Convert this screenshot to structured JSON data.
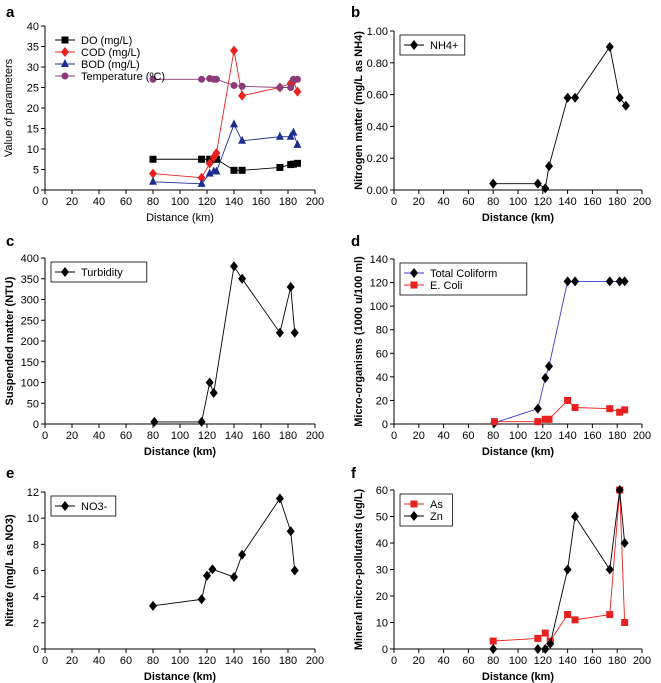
{
  "chart_data": [
    {
      "panel": "a",
      "type": "line",
      "xlabel": "Distance (km)",
      "ylabel": "Value of parameters",
      "xlim": [
        0,
        200
      ],
      "ylim": [
        0,
        40
      ],
      "xticks": [
        0,
        20,
        40,
        60,
        80,
        100,
        120,
        140,
        160,
        180,
        200
      ],
      "yticks": [
        0,
        5,
        10,
        15,
        20,
        25,
        30,
        35,
        40
      ],
      "xtick_labels": [
        "0",
        "20",
        "40",
        "60",
        "80",
        "100",
        "120",
        "140",
        "160",
        "180",
        "200"
      ],
      "ytick_labels": [
        "0",
        "5",
        "10",
        "15",
        "20",
        "25",
        "30",
        "35",
        "40"
      ],
      "legend_position": "top-left",
      "legend_boxed": false,
      "bold_labels": false,
      "series": [
        {
          "name": "DO  (mg/L)",
          "color": "#000000",
          "marker": "square",
          "x": [
            80,
            116,
            122,
            125,
            127,
            140,
            146,
            174,
            182,
            184,
            187
          ],
          "y": [
            7.5,
            7.5,
            7.5,
            7.5,
            7.5,
            4.8,
            4.8,
            5.5,
            6.2,
            6.3,
            6.5
          ]
        },
        {
          "name": "COD  (mg/L)",
          "color": "#e8211f",
          "marker": "diamond",
          "x": [
            80,
            116,
            122,
            125,
            127,
            140,
            146,
            174,
            182,
            184,
            187
          ],
          "y": [
            4,
            3,
            6.5,
            8,
            9,
            34,
            23,
            25,
            26,
            26.5,
            24
          ]
        },
        {
          "name": "BOD  (mg/L)",
          "color": "#1c2e8f",
          "marker": "triangle",
          "x": [
            80,
            116,
            122,
            125,
            127,
            140,
            146,
            174,
            182,
            184,
            187
          ],
          "y": [
            2,
            1.5,
            4,
            4.5,
            4.5,
            16,
            12,
            13,
            13,
            14,
            11
          ]
        },
        {
          "name": "Temperature (ºC)",
          "color": "#8c3a7a",
          "marker": "circle",
          "x": [
            80,
            116,
            122,
            125,
            127,
            140,
            146,
            174,
            182,
            184,
            187
          ],
          "y": [
            27,
            27,
            27.2,
            27,
            27,
            25.5,
            25.3,
            25,
            25,
            27,
            27
          ]
        }
      ]
    },
    {
      "panel": "b",
      "type": "line",
      "xlabel": "Distance (km)",
      "ylabel": "Nitrogen matter (mg/L as NH4)",
      "xlim": [
        0,
        200
      ],
      "ylim": [
        0,
        1
      ],
      "xticks": [
        0,
        20,
        40,
        60,
        80,
        100,
        120,
        140,
        160,
        180,
        200
      ],
      "yticks": [
        0,
        0.2,
        0.4,
        0.6,
        0.8,
        1.0
      ],
      "xtick_labels": [
        "0",
        "20",
        "40",
        "60",
        "80",
        "100",
        "120",
        "140",
        "160",
        "180",
        "200"
      ],
      "ytick_labels": [
        "0.00",
        "0.20",
        "0.40",
        "0.60",
        "0.80",
        "1.00"
      ],
      "legend_position": "top-left",
      "legend_boxed": true,
      "bold_labels": true,
      "series": [
        {
          "name": "NH4+",
          "color": "#000000",
          "marker": "diamond",
          "x": [
            80,
            116,
            122,
            125,
            140,
            146,
            174,
            182,
            187
          ],
          "y": [
            0.04,
            0.04,
            0.01,
            0.15,
            0.58,
            0.58,
            0.9,
            0.58,
            0.53
          ]
        }
      ]
    },
    {
      "panel": "c",
      "type": "line",
      "xlabel": "Distance (km)",
      "ylabel": "Suspended matter (NTU)",
      "xlim": [
        0,
        200
      ],
      "ylim": [
        0,
        400
      ],
      "xticks": [
        0,
        20,
        40,
        60,
        80,
        100,
        120,
        140,
        160,
        180,
        200
      ],
      "yticks": [
        0,
        50,
        100,
        150,
        200,
        250,
        300,
        350,
        400
      ],
      "xtick_labels": [
        "0",
        "20",
        "40",
        "60",
        "80",
        "100",
        "120",
        "140",
        "160",
        "180",
        "200"
      ],
      "ytick_labels": [
        "0",
        "50",
        "100",
        "150",
        "200",
        "250",
        "300",
        "350",
        "400"
      ],
      "legend_position": "top-left",
      "legend_boxed": true,
      "bold_labels": true,
      "series": [
        {
          "name": "Turbidity",
          "color": "#000000",
          "marker": "diamond",
          "x": [
            81,
            116,
            122,
            125,
            140,
            146,
            174,
            182,
            185
          ],
          "y": [
            5,
            5,
            100,
            75,
            380,
            350,
            220,
            330,
            220
          ]
        }
      ]
    },
    {
      "panel": "d",
      "type": "line",
      "xlabel": "Distance (km)",
      "ylabel": "Micro-organisms (1000 u/100 ml)",
      "xlim": [
        0,
        200
      ],
      "ylim": [
        0,
        140
      ],
      "xticks": [
        0,
        20,
        40,
        60,
        80,
        100,
        120,
        140,
        160,
        180,
        200
      ],
      "yticks": [
        0,
        20,
        40,
        60,
        80,
        100,
        120,
        140
      ],
      "xtick_labels": [
        "0",
        "20",
        "40",
        "60",
        "80",
        "100",
        "120",
        "140",
        "160",
        "180",
        "200"
      ],
      "ytick_labels": [
        "0",
        "20",
        "40",
        "60",
        "80",
        "100",
        "120",
        "140"
      ],
      "legend_position": "top-left",
      "legend_boxed": true,
      "bold_labels": true,
      "series": [
        {
          "name": "Total Coliform",
          "color": "#000000",
          "line_color": "#3a3ad0",
          "marker": "diamond",
          "x": [
            81,
            116,
            122,
            125,
            140,
            146,
            174,
            182,
            186
          ],
          "y": [
            1,
            13,
            39,
            49,
            121,
            121,
            121,
            121,
            121
          ]
        },
        {
          "name": "E. Coli",
          "color": "#e8211f",
          "marker": "square",
          "x": [
            81,
            116,
            122,
            125,
            140,
            146,
            174,
            182,
            186
          ],
          "y": [
            2,
            2,
            4,
            4,
            20,
            14,
            13,
            10,
            12
          ]
        }
      ]
    },
    {
      "panel": "e",
      "type": "line",
      "xlabel": "Distance (km)",
      "ylabel": "Nitrate (mg/L as NO3)",
      "xlim": [
        0,
        200
      ],
      "ylim": [
        0,
        12
      ],
      "xticks": [
        0,
        20,
        40,
        60,
        80,
        100,
        120,
        140,
        160,
        180,
        200
      ],
      "yticks": [
        0,
        2,
        4,
        6,
        8,
        10,
        12
      ],
      "xtick_labels": [
        "0",
        "20",
        "40",
        "60",
        "80",
        "100",
        "120",
        "140",
        "160",
        "180",
        "200"
      ],
      "ytick_labels": [
        "0",
        "2",
        "4",
        "6",
        "8",
        "10",
        "12"
      ],
      "legend_position": "top-left",
      "legend_boxed": true,
      "bold_labels": true,
      "series": [
        {
          "name": "NO3-",
          "color": "#000000",
          "marker": "diamond",
          "x": [
            80,
            116,
            120,
            124,
            140,
            146,
            174,
            182,
            185
          ],
          "y": [
            3.3,
            3.8,
            5.6,
            6.1,
            5.5,
            7.2,
            11.5,
            9,
            6
          ]
        }
      ]
    },
    {
      "panel": "f",
      "type": "line",
      "xlabel": "Distance (km)",
      "ylabel": "Mineral micro-pollutants (ug/L)",
      "xlim": [
        0,
        200
      ],
      "ylim": [
        0,
        60
      ],
      "xticks": [
        0,
        20,
        40,
        60,
        80,
        100,
        120,
        140,
        160,
        180,
        200
      ],
      "yticks": [
        0,
        10,
        20,
        30,
        40,
        50,
        60
      ],
      "xtick_labels": [
        "0",
        "20",
        "40",
        "60",
        "80",
        "100",
        "120",
        "140",
        "160",
        "180",
        "200"
      ],
      "ytick_labels": [
        "0",
        "10",
        "20",
        "30",
        "40",
        "50",
        "60"
      ],
      "legend_position": "top-left",
      "legend_boxed": true,
      "bold_labels": true,
      "series": [
        {
          "name": "As",
          "color": "#e8211f",
          "marker": "square",
          "x": [
            80,
            116,
            122,
            126,
            140,
            146,
            174,
            182,
            186
          ],
          "y": [
            3,
            4,
            6,
            3,
            13,
            11,
            13,
            60,
            10
          ]
        },
        {
          "name": "Zn",
          "color": "#000000",
          "marker": "diamond",
          "x": [
            80,
            116,
            122,
            126,
            140,
            146,
            174,
            182,
            186
          ],
          "y": [
            0,
            0,
            0,
            2,
            30,
            50,
            30,
            60,
            40
          ]
        }
      ]
    }
  ]
}
